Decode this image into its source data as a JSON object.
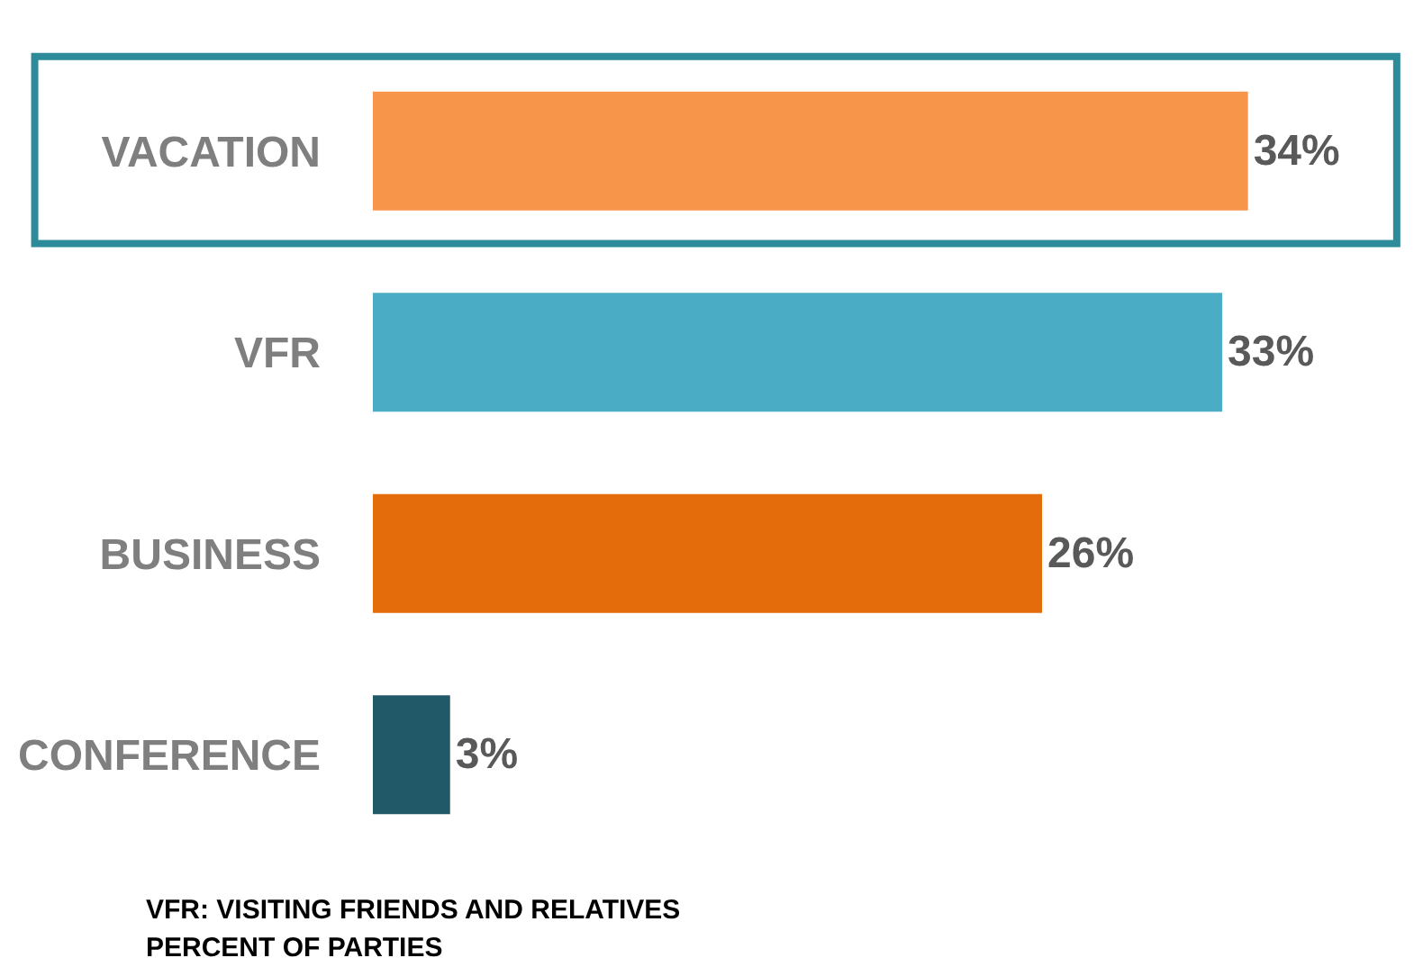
{
  "chart_data": {
    "type": "bar",
    "orientation": "horizontal",
    "categories": [
      "VACATION",
      "VFR",
      "BUSINESS",
      "CONFERENCE"
    ],
    "values": [
      34,
      33,
      26,
      3
    ],
    "colors": [
      "#f7964a",
      "#4bacc6",
      "#e46c0a",
      "#215968"
    ],
    "value_labels": [
      "34%",
      "33%",
      "26%",
      "3%"
    ],
    "annotations": [
      "VFR: VISITING FRIENDS AND RELATIVES",
      "PERCENT OF PARTIES"
    ]
  }
}
